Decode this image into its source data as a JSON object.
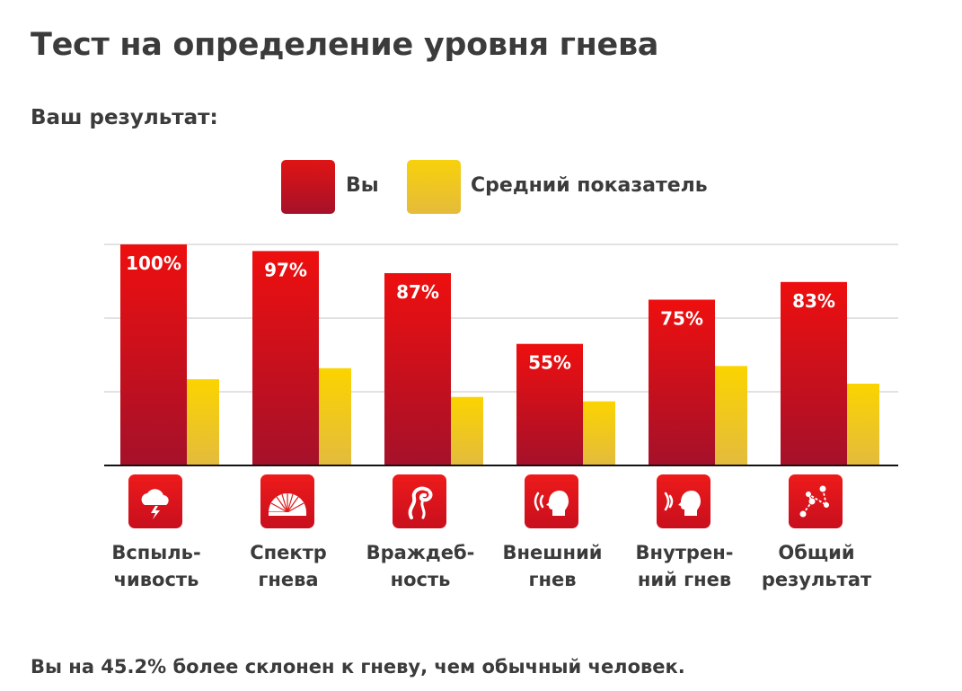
{
  "page": {
    "title": "Тест на определение уровня гнева",
    "subtitle": "Ваш результат:",
    "footer": "Вы на 45.2% более склонен к гневу, чем обычный человек."
  },
  "legend": {
    "you": "Вы",
    "average": "Средний показатель"
  },
  "colors": {
    "you_top": "#e01414",
    "you_bottom": "#a5112a",
    "avg_top": "#f7d10c",
    "avg_bottom": "#e5bb3a",
    "grid": "#d8d8d8",
    "axis": "#111111"
  },
  "categories": [
    {
      "line1": "Вспыль-",
      "line2": "чивость",
      "icon": "storm-cloud-icon"
    },
    {
      "line1": "Спектр",
      "line2": "гнева",
      "icon": "spectrum-fan-icon"
    },
    {
      "line1": "Враждеб-",
      "line2": "ность",
      "icon": "serpent-icon"
    },
    {
      "line1": "Внешний",
      "line2": "гнев",
      "icon": "shouting-head-icon"
    },
    {
      "line1": "Внутрен-",
      "line2": "ний гнев",
      "icon": "speaking-head-icon"
    },
    {
      "line1": "Общий",
      "line2": "результат",
      "icon": "connected-dots-icon"
    }
  ],
  "chart_data": {
    "type": "bar",
    "title": "",
    "categories": [
      "Вспыль-чивость",
      "Спектр гнева",
      "Враждеб-ность",
      "Внешний гнев",
      "Внутрен-ний гнев",
      "Общий результат"
    ],
    "series": [
      {
        "name": "Вы",
        "values": [
          100,
          97,
          87,
          55,
          75,
          83
        ],
        "labels": [
          "100%",
          "97%",
          "87%",
          "55%",
          "75%",
          "83%"
        ]
      },
      {
        "name": "Средний показатель",
        "values": [
          39,
          44,
          31,
          29,
          45,
          37
        ]
      }
    ],
    "ylim": [
      0,
      100
    ],
    "grid": true,
    "xlabel": "",
    "ylabel": ""
  }
}
